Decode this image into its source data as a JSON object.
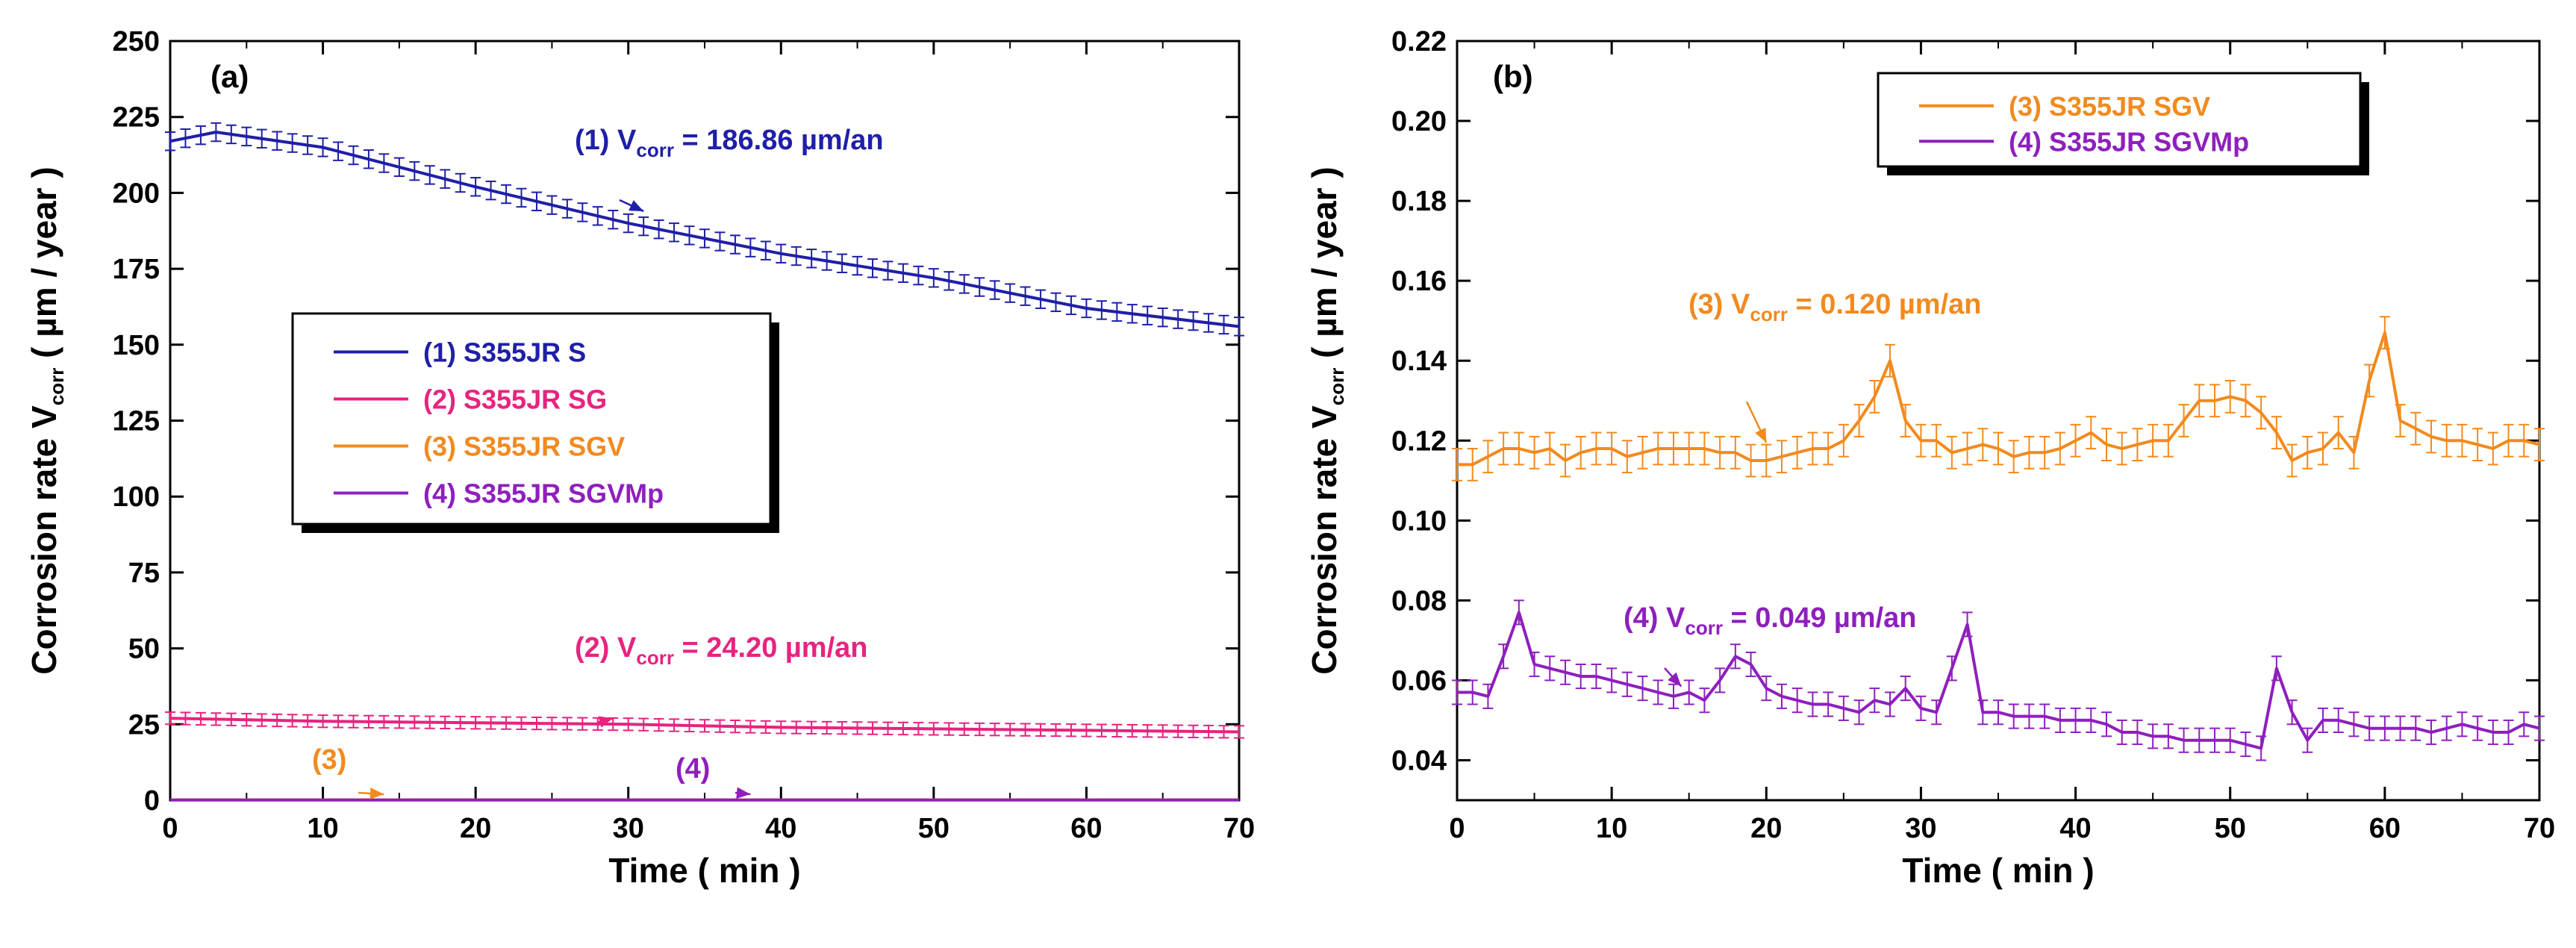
{
  "chart_data": [
    {
      "panel": "(a)",
      "type": "line",
      "xlabel": "Time ( min )",
      "ylabel_main": "Corrosion rate V",
      "ylabel_sub": "corr",
      "ylabel_unit": " ( µm / year )",
      "xlim": [
        0,
        70
      ],
      "ylim": [
        0,
        250
      ],
      "x_ticks": [
        0,
        10,
        20,
        30,
        40,
        50,
        60,
        70
      ],
      "y_ticks": [
        0,
        25,
        50,
        75,
        100,
        125,
        150,
        175,
        200,
        225,
        250
      ],
      "grid": false,
      "legend_position": "center-left",
      "series": [
        {
          "name": "(1) S355JR S",
          "color": "#1f1fa8",
          "x": [
            0,
            3,
            10,
            20,
            30,
            40,
            50,
            60,
            70
          ],
          "y": [
            217,
            220,
            215,
            202,
            190,
            180,
            172,
            162,
            156
          ],
          "error": 3
        },
        {
          "name": "(2) S355JR SG",
          "color": "#e8237f",
          "x": [
            0,
            10,
            20,
            30,
            40,
            50,
            60,
            70
          ],
          "y": [
            27,
            26,
            25.5,
            25,
            24,
            23.5,
            23,
            22.5
          ],
          "error": 2
        },
        {
          "name": "(3) S355JR SGV",
          "color": "#f28a1e",
          "x": [
            0,
            70
          ],
          "y": [
            0.12,
            0.12
          ],
          "error": 0
        },
        {
          "name": "(4) S355JR SGVMp",
          "color": "#8e1fbe",
          "x": [
            0,
            70
          ],
          "y": [
            0.05,
            0.05
          ],
          "error": 0
        }
      ],
      "annotations": [
        {
          "prefix": "(1) V",
          "sub": "corr",
          "suffix": " = 186.86 µm/an",
          "color": "#1f1fa8",
          "target": [
            31,
            192
          ]
        },
        {
          "prefix": "(2) V",
          "sub": "corr",
          "suffix": " = 24.20 µm/an",
          "color": "#e8237f",
          "target": [
            29,
            25
          ]
        },
        {
          "prefix": "(3)",
          "sub": "",
          "suffix": "",
          "color": "#f28a1e",
          "target": [
            14,
            0
          ]
        },
        {
          "prefix": "(4)",
          "sub": "",
          "suffix": "",
          "color": "#8e1fbe",
          "target": [
            38,
            0
          ]
        }
      ]
    },
    {
      "panel": "(b)",
      "type": "line",
      "xlabel": "Time ( min )",
      "ylabel_main": "Corrosion rate V",
      "ylabel_sub": "corr",
      "ylabel_unit": " ( µm / year )",
      "xlim": [
        0,
        70
      ],
      "ylim": [
        0.03,
        0.22
      ],
      "x_ticks": [
        0,
        10,
        20,
        30,
        40,
        50,
        60,
        70
      ],
      "y_ticks": [
        "0.04",
        "0.06",
        "0.08",
        "0.10",
        "0.12",
        "0.14",
        "0.16",
        "0.18",
        "0.20",
        "0.22"
      ],
      "y_tick_values": [
        0.04,
        0.06,
        0.08,
        0.1,
        0.12,
        0.14,
        0.16,
        0.18,
        0.2,
        0.22
      ],
      "grid": false,
      "legend_position": "top-center",
      "series": [
        {
          "name": "(3) S355JR SGV",
          "color": "#f28a1e",
          "x": [
            0,
            1,
            2,
            3,
            4,
            5,
            6,
            7,
            8,
            9,
            10,
            11,
            12,
            13,
            14,
            15,
            16,
            17,
            18,
            19,
            20,
            21,
            22,
            23,
            24,
            25,
            26,
            27,
            28,
            29,
            30,
            31,
            32,
            33,
            34,
            35,
            36,
            37,
            38,
            39,
            40,
            41,
            42,
            43,
            44,
            45,
            46,
            47,
            48,
            49,
            50,
            51,
            52,
            53,
            54,
            55,
            56,
            57,
            58,
            59,
            60,
            61,
            62,
            63,
            64,
            65,
            66,
            67,
            68,
            69,
            70
          ],
          "y": [
            0.114,
            0.114,
            0.116,
            0.118,
            0.118,
            0.117,
            0.118,
            0.115,
            0.117,
            0.118,
            0.118,
            0.116,
            0.117,
            0.118,
            0.118,
            0.118,
            0.118,
            0.117,
            0.117,
            0.115,
            0.115,
            0.116,
            0.117,
            0.118,
            0.118,
            0.12,
            0.125,
            0.131,
            0.14,
            0.125,
            0.12,
            0.12,
            0.117,
            0.118,
            0.119,
            0.118,
            0.116,
            0.117,
            0.117,
            0.118,
            0.12,
            0.122,
            0.119,
            0.118,
            0.119,
            0.12,
            0.12,
            0.125,
            0.13,
            0.13,
            0.131,
            0.13,
            0.127,
            0.122,
            0.115,
            0.117,
            0.118,
            0.122,
            0.117,
            0.135,
            0.147,
            0.125,
            0.123,
            0.121,
            0.12,
            0.12,
            0.119,
            0.118,
            0.12,
            0.12,
            0.119
          ],
          "error": 0.004
        },
        {
          "name": "(4) S355JR SGVMp",
          "color": "#8e1fbe",
          "x": [
            0,
            1,
            2,
            3,
            4,
            5,
            6,
            7,
            8,
            9,
            10,
            11,
            12,
            13,
            14,
            15,
            16,
            17,
            18,
            19,
            20,
            21,
            22,
            23,
            24,
            25,
            26,
            27,
            28,
            29,
            30,
            31,
            32,
            33,
            34,
            35,
            36,
            37,
            38,
            39,
            40,
            41,
            42,
            43,
            44,
            45,
            46,
            47,
            48,
            49,
            50,
            51,
            52,
            53,
            54,
            55,
            56,
            57,
            58,
            59,
            60,
            61,
            62,
            63,
            64,
            65,
            66,
            67,
            68,
            69,
            70
          ],
          "y": [
            0.057,
            0.057,
            0.056,
            0.066,
            0.077,
            0.064,
            0.063,
            0.062,
            0.061,
            0.061,
            0.06,
            0.059,
            0.058,
            0.057,
            0.056,
            0.057,
            0.055,
            0.06,
            0.066,
            0.064,
            0.058,
            0.056,
            0.055,
            0.054,
            0.054,
            0.053,
            0.052,
            0.055,
            0.054,
            0.058,
            0.053,
            0.052,
            0.063,
            0.074,
            0.052,
            0.052,
            0.051,
            0.051,
            0.051,
            0.05,
            0.05,
            0.05,
            0.049,
            0.047,
            0.047,
            0.046,
            0.046,
            0.045,
            0.045,
            0.045,
            0.045,
            0.044,
            0.043,
            0.063,
            0.052,
            0.045,
            0.05,
            0.05,
            0.049,
            0.048,
            0.048,
            0.048,
            0.048,
            0.047,
            0.048,
            0.049,
            0.048,
            0.047,
            0.047,
            0.049,
            0.048
          ],
          "error": 0.003
        }
      ],
      "annotations": [
        {
          "prefix": "(3) V",
          "sub": "corr",
          "suffix": " = 0.120 µm/an",
          "color": "#f28a1e",
          "target": [
            20,
            0.118
          ]
        },
        {
          "prefix": "(4) V",
          "sub": "corr",
          "suffix": " = 0.049 µm/an",
          "color": "#8e1fbe",
          "target": [
            14.5,
            0.057
          ]
        }
      ]
    }
  ]
}
